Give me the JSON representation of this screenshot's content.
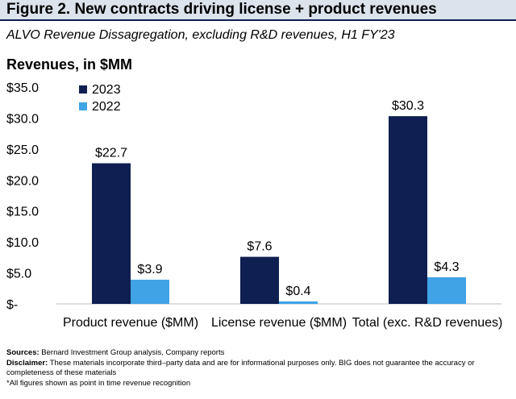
{
  "figure_title": "Figure 2. New contracts driving license + product revenues",
  "subtitle": "ALVO Revenue Dissagregation, excluding R&D revenues, H1 FY'23",
  "colors": {
    "series_2023": "#0f1f52",
    "series_2022": "#3fa3e6",
    "title_bg": "#dde3ec"
  },
  "chart_data": {
    "type": "bar",
    "title": "Revenues, in $MM",
    "categories": [
      "Product revenue ($MM)",
      "License revenue  ($MM)",
      "Total (exc. R&D revenues)"
    ],
    "series": [
      {
        "name": "2023",
        "values": [
          22.7,
          7.6,
          30.3
        ],
        "labels": [
          "$22.7",
          "$7.6",
          "$30.3"
        ]
      },
      {
        "name": "2022",
        "values": [
          3.9,
          0.4,
          4.3
        ],
        "labels": [
          "$3.9",
          "$0.4",
          "$4.3"
        ]
      }
    ],
    "ylim": [
      0,
      35
    ],
    "yticks": [
      0,
      5,
      10,
      15,
      20,
      25,
      30,
      35
    ],
    "ytick_labels": [
      "$-",
      "$5.0",
      "$10.0",
      "$15.0",
      "$20.0",
      "$25.0",
      "$30.0",
      "$35.0"
    ],
    "legend_position": "top-left",
    "grid": false
  },
  "footer": {
    "sources_label": "Sources:",
    "sources_text": " Bernard Investment Group analysis, Company reports",
    "disclaimer_label": "Disclaimer:",
    "disclaimer_text": " These materials incorporate third–party data and are for informational purposes only. BIG does not guarantee the accuracy or completeness of these materials",
    "note": "*All figures shown as point in time revenue recognition"
  }
}
